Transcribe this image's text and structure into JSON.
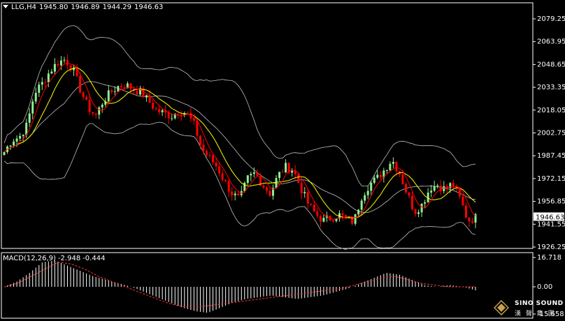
{
  "header": {
    "symbol": "LLG,H4",
    "open": "1945.80",
    "high": "1946.89",
    "low": "1944.29",
    "close": "1946.63"
  },
  "macd_header": {
    "label": "MACD(12,26,9)",
    "main": "-2.948",
    "signal": "-0.444"
  },
  "price_axis": {
    "ticks": [
      "2079.25",
      "2063.95",
      "2048.65",
      "2033.35",
      "2018.05",
      "2002.75",
      "1987.45",
      "1972.15",
      "1956.85",
      "1941.55",
      "1926.25"
    ],
    "current_label": "1946.63",
    "range": [
      1926.25,
      2079.25
    ]
  },
  "macd_axis": {
    "ticks": [
      "16.718",
      "0.00",
      "-15.658"
    ],
    "range": [
      -15.658,
      16.718
    ]
  },
  "logo": {
    "name": "SINO SOUND",
    "sub": "漢 聲 集 團"
  },
  "colors": {
    "bull": "#90ee90",
    "bear": "#ff0000",
    "ma": "#ffff00",
    "bollinger": "#bfbfbf",
    "macd_hist": "#ffffff",
    "macd_signal": "#ff3030",
    "axis": "#ffffff"
  },
  "chart_data": {
    "type": "candlestick",
    "timeframe": "H4",
    "close_path": [
      1990,
      1998,
      2000,
      2008,
      2030,
      2036,
      2044,
      2050,
      2052,
      2046,
      2032,
      2020,
      2014,
      2024,
      2030,
      2034,
      2035,
      2032,
      2030,
      2024,
      2018,
      2016,
      2014,
      2018,
      2016,
      2008,
      1992,
      1986,
      1980,
      1970,
      1962,
      1958,
      1972,
      1976,
      1968,
      1962,
      1974,
      1980,
      1978,
      1966,
      1955,
      1948,
      1944,
      1946,
      1948,
      1945,
      1943,
      1960,
      1968,
      1972,
      1978,
      1985,
      1976,
      1962,
      1950,
      1955,
      1966,
      1968,
      1965,
      1969,
      1958,
      1944,
      1946
    ],
    "macd_hist_path": [
      0,
      3,
      8,
      14,
      15,
      12,
      9,
      6,
      4,
      2,
      0,
      -3,
      -6,
      -9,
      -12,
      -14,
      -15,
      -12,
      -9,
      -7,
      -6,
      -5,
      -6,
      -7,
      -6,
      -5,
      -3,
      -1,
      2,
      5,
      8,
      7,
      4,
      1,
      0,
      1,
      0,
      -2
    ],
    "macd_signal_path": [
      0,
      2,
      6,
      10,
      14,
      13,
      10,
      6,
      3,
      0,
      -3,
      -6,
      -9,
      -11,
      -12,
      -11,
      -10,
      -9,
      -8,
      -7,
      -6,
      -5,
      -4,
      -3,
      -2,
      -1,
      1,
      3,
      5,
      6,
      4,
      2,
      1,
      0,
      0,
      0
    ]
  }
}
